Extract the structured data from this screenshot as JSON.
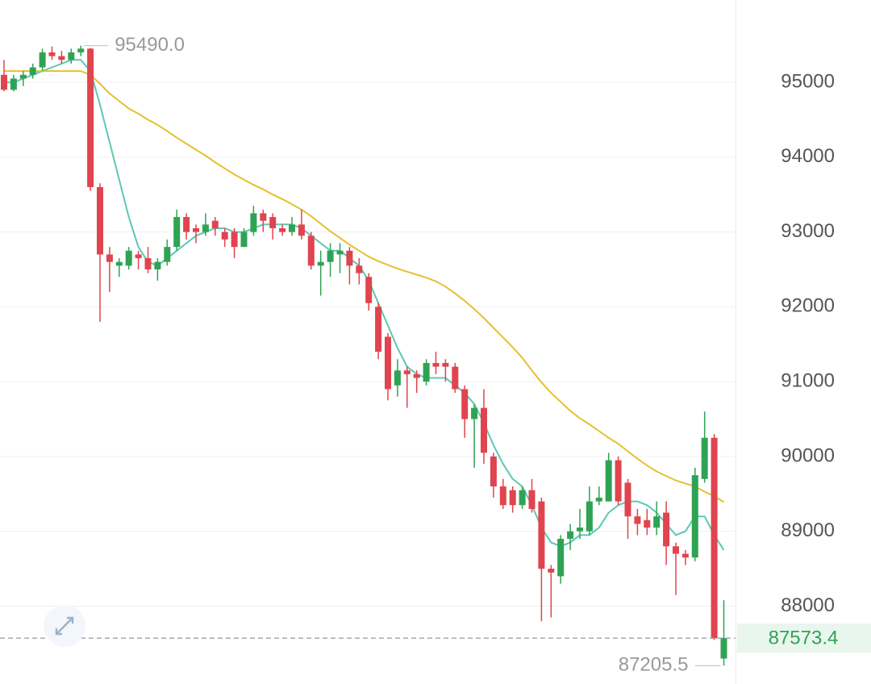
{
  "chart_data": {
    "type": "candlestick",
    "open": [
      95100,
      94900,
      95050,
      95100,
      95200,
      95400,
      95350,
      95300,
      95400,
      95450,
      93600,
      92700,
      92550,
      92550,
      92700,
      92650,
      92500,
      92600,
      92800,
      93200,
      93050,
      93000,
      93150,
      93000,
      93000,
      92800,
      93000,
      93250,
      93200,
      93050,
      93000,
      93100,
      92950,
      92550,
      92600,
      92700,
      92750,
      92550,
      92400,
      92000,
      91600,
      90950,
      91150,
      91100,
      91000,
      91250,
      91250,
      91200,
      90900,
      90500,
      90650,
      90000,
      89600,
      89550,
      89350,
      89550,
      89400,
      88500,
      88400,
      88900,
      89000,
      89000,
      89400,
      89400,
      89950,
      89650,
      89200,
      89150,
      89050,
      89250,
      88800,
      88700,
      88650,
      89700,
      90250,
      87300
    ],
    "high": [
      95300,
      95100,
      95150,
      95250,
      95450,
      95480,
      95420,
      95450,
      95490,
      95460,
      93650,
      92800,
      92650,
      92800,
      92750,
      92800,
      92650,
      92900,
      93300,
      93250,
      93100,
      93250,
      93200,
      93050,
      93050,
      93050,
      93350,
      93300,
      93250,
      93100,
      93200,
      93300,
      93000,
      92750,
      92850,
      92850,
      92800,
      92650,
      92450,
      92050,
      91650,
      91300,
      91200,
      91150,
      91300,
      91400,
      91300,
      91250,
      90950,
      90700,
      90900,
      90050,
      89700,
      89600,
      89600,
      89700,
      89450,
      88550,
      88950,
      89100,
      89300,
      89600,
      89600,
      90050,
      90000,
      89700,
      89300,
      89300,
      89400,
      89400,
      88850,
      88750,
      89850,
      90600,
      90300,
      88080
    ],
    "low": [
      94880,
      94880,
      94950,
      95050,
      95150,
      95300,
      95250,
      95250,
      95350,
      93550,
      91800,
      92200,
      92400,
      92500,
      92500,
      92450,
      92350,
      92550,
      92750,
      92900,
      92850,
      92950,
      92950,
      92800,
      92650,
      92800,
      92950,
      93000,
      92900,
      92950,
      92950,
      92900,
      92500,
      92150,
      92400,
      92450,
      92300,
      92300,
      91950,
      91300,
      90750,
      90800,
      90650,
      90850,
      90950,
      91100,
      91000,
      90850,
      90250,
      89850,
      89900,
      89450,
      89300,
      89250,
      89300,
      89250,
      87800,
      87850,
      88300,
      88750,
      88900,
      88950,
      89350,
      89400,
      89350,
      88900,
      88950,
      88950,
      88950,
      88550,
      88150,
      88550,
      88600,
      89650,
      87550,
      87205.5
    ],
    "close": [
      94900,
      95050,
      95100,
      95200,
      95400,
      95350,
      95300,
      95400,
      95450,
      93600,
      92700,
      92600,
      92600,
      92750,
      92650,
      92500,
      92600,
      92800,
      93200,
      93000,
      93000,
      93100,
      93050,
      92900,
      92800,
      93000,
      93250,
      93150,
      93050,
      93000,
      93100,
      92950,
      92550,
      92600,
      92750,
      92750,
      92550,
      92450,
      92050,
      91400,
      90900,
      91150,
      91100,
      91050,
      91250,
      91200,
      91200,
      90900,
      90500,
      90650,
      90050,
      89600,
      89350,
      89350,
      89550,
      89300,
      88500,
      88450,
      88900,
      89000,
      89050,
      89400,
      89450,
      89950,
      89400,
      89200,
      89100,
      89050,
      89200,
      88800,
      88700,
      88650,
      89750,
      90250,
      87570,
      87573.4
    ],
    "up_color": "#2fa354",
    "down_color": "#e0444e",
    "series": [
      {
        "color": "#5cc8b4",
        "values": [
          95000,
          95000,
          95050,
          95100,
          95150,
          95200,
          95250,
          95300,
          95300,
          95150,
          94700,
          94200,
          93700,
          93200,
          92800,
          92600,
          92550,
          92650,
          92750,
          92850,
          92950,
          93000,
          93050,
          93050,
          93000,
          93000,
          93050,
          93100,
          93100,
          93100,
          93100,
          93050,
          92950,
          92850,
          92750,
          92750,
          92650,
          92550,
          92350,
          92050,
          91750,
          91450,
          91200,
          91100,
          91050,
          91050,
          91050,
          90950,
          90850,
          90700,
          90450,
          90150,
          89900,
          89700,
          89600,
          89350,
          89050,
          88850,
          88800,
          88850,
          88950,
          88950,
          89050,
          89250,
          89350,
          89400,
          89400,
          89350,
          89250,
          89100,
          88950,
          89000,
          89200,
          89200,
          88950,
          88750
        ]
      },
      {
        "color": "#e6c02f",
        "values": [
          95150,
          95150,
          95150,
          95150,
          95150,
          95150,
          95150,
          95150,
          95150,
          95100,
          94980,
          94850,
          94750,
          94650,
          94580,
          94500,
          94430,
          94350,
          94260,
          94180,
          94100,
          94020,
          93930,
          93850,
          93770,
          93700,
          93630,
          93570,
          93500,
          93440,
          93370,
          93300,
          93210,
          93110,
          93010,
          92920,
          92830,
          92750,
          92670,
          92610,
          92560,
          92510,
          92470,
          92430,
          92390,
          92340,
          92270,
          92180,
          92080,
          91970,
          91850,
          91720,
          91590,
          91460,
          91320,
          91150,
          90990,
          90850,
          90730,
          90610,
          90510,
          90430,
          90340,
          90250,
          90170,
          90070,
          89970,
          89880,
          89800,
          89740,
          89680,
          89640,
          89600,
          89530,
          89470,
          89390
        ]
      }
    ],
    "ylim": [
      86960,
      96100
    ],
    "yticks": [
      88000,
      89000,
      90000,
      91000,
      92000,
      93000,
      94000,
      95000
    ],
    "grid": true,
    "high_label": {
      "value": 95490,
      "label": "95490.0"
    },
    "low_label": {
      "value": 87205.5,
      "label": "87205.5"
    },
    "last_price": {
      "value": 87573.4,
      "label": "87573.4"
    }
  }
}
